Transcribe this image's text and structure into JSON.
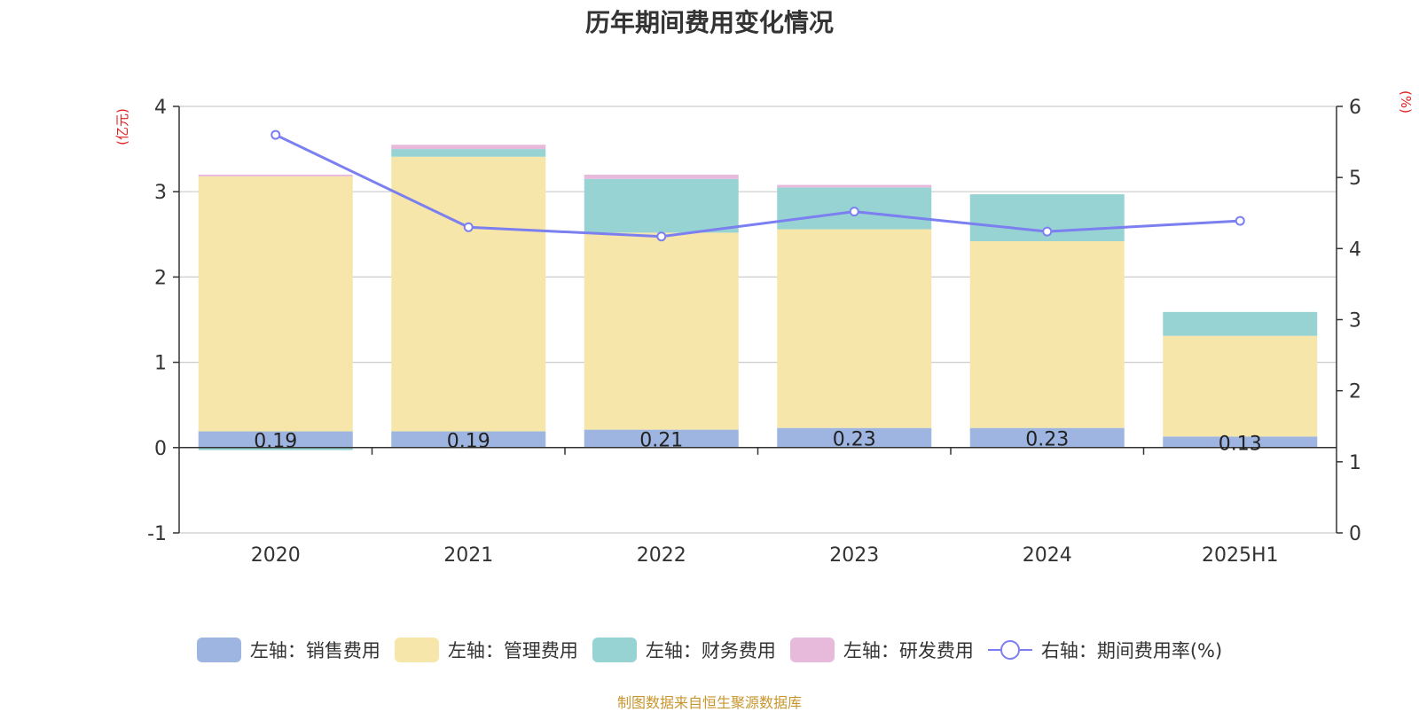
{
  "chart_data": {
    "type": "bar",
    "title": "历年期间费用变化情况",
    "categories": [
      "2020",
      "2021",
      "2022",
      "2023",
      "2024",
      "2025H1"
    ],
    "series": [
      {
        "name": "左轴：销售费用",
        "axis": "left",
        "values": [
          0.19,
          0.19,
          0.21,
          0.23,
          0.23,
          0.13
        ],
        "color": "#9db5e0"
      },
      {
        "name": "左轴：管理费用",
        "axis": "left",
        "values": [
          2.99,
          3.22,
          2.31,
          2.33,
          2.19,
          1.18
        ],
        "color": "#f7e6a9"
      },
      {
        "name": "左轴：财务费用",
        "axis": "left",
        "values": [
          -0.03,
          0.09,
          0.63,
          0.49,
          0.55,
          0.28
        ],
        "color": "#98d3d3"
      },
      {
        "name": "左轴：研发费用",
        "axis": "left",
        "values": [
          0.02,
          0.05,
          0.05,
          0.03,
          0.0,
          0.0
        ],
        "color": "#e7b9da"
      },
      {
        "name": "右轴：期间费用率(%)",
        "axis": "right",
        "type": "line",
        "values": [
          5.6,
          4.3,
          4.17,
          4.52,
          4.24,
          4.39
        ],
        "color": "#7b7ff0"
      }
    ],
    "bar_labels": [
      "0.19",
      "0.19",
      "0.21",
      "0.23",
      "0.23",
      "0.13"
    ],
    "y_left": {
      "label": "(亿元)",
      "ylim": [
        -1,
        4
      ],
      "ticks": [
        "-1",
        "0",
        "1",
        "2",
        "3",
        "4"
      ]
    },
    "y_right": {
      "label": "(%)",
      "ylim": [
        0,
        6
      ],
      "ticks": [
        "0",
        "1",
        "2",
        "3",
        "4",
        "5",
        "6"
      ]
    },
    "grid": true,
    "legend_position": "bottom"
  },
  "source": "制图数据来自恒生聚源数据库"
}
